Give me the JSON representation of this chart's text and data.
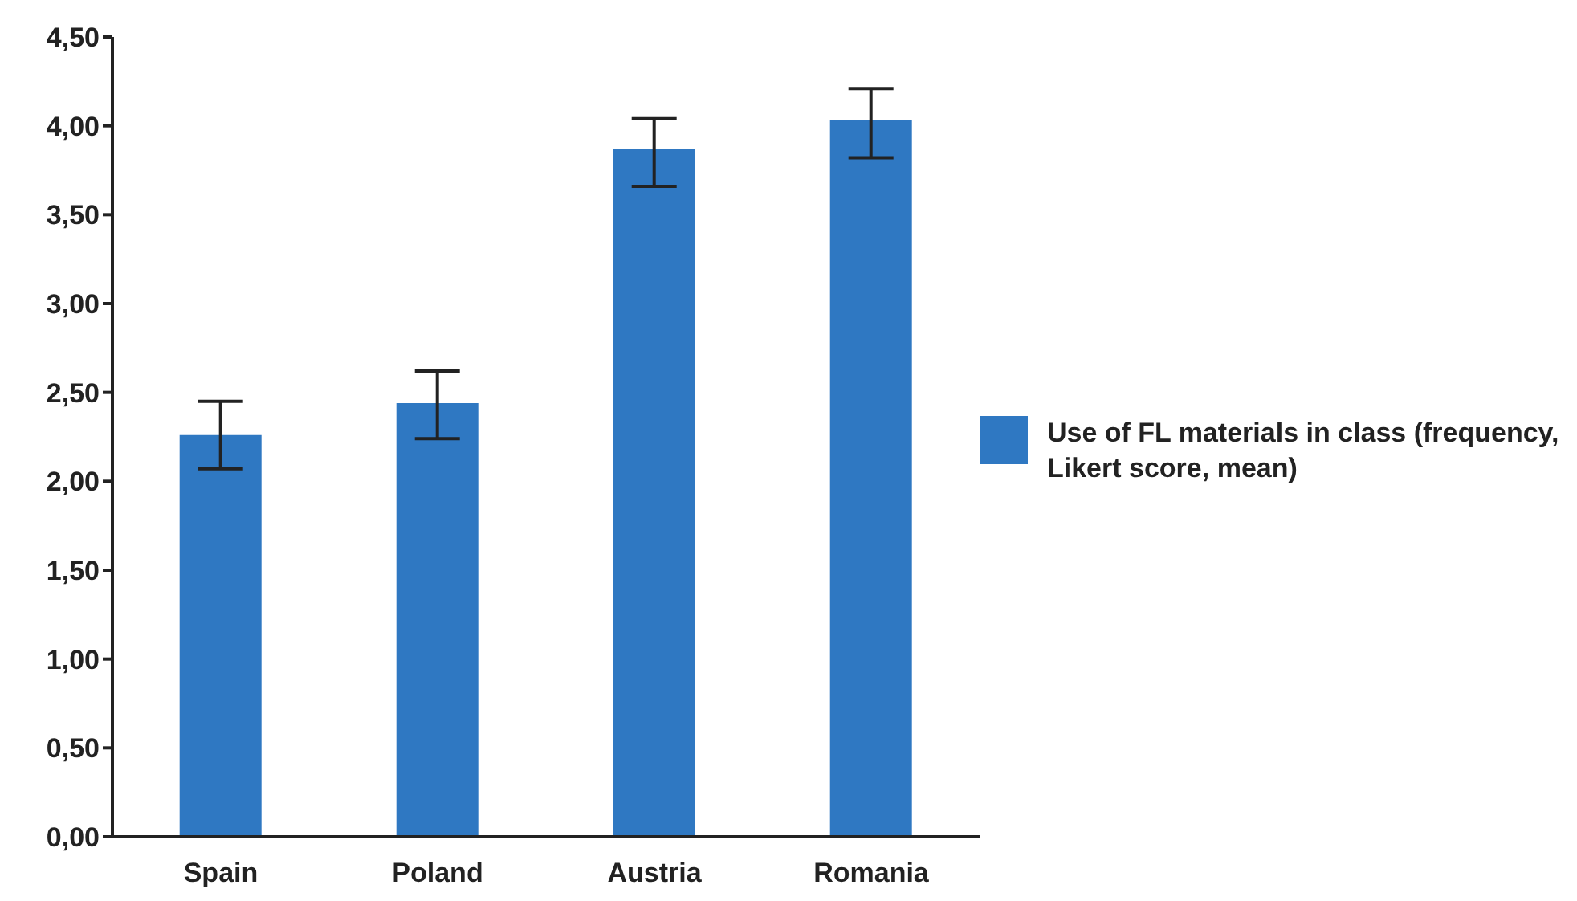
{
  "chart_data": {
    "type": "bar",
    "categories": [
      "Spain",
      "Poland",
      "Austria",
      "Romania"
    ],
    "series": [
      {
        "name": "Use of FL materials in class (frequency, Likert score, mean)",
        "color": "#2f78c2",
        "values": [
          2.26,
          2.44,
          3.87,
          4.03
        ],
        "errors": [
          [
            2.07,
            2.45
          ],
          [
            2.24,
            2.62
          ],
          [
            3.66,
            4.04
          ],
          [
            3.82,
            4.21
          ]
        ]
      }
    ],
    "ylim": [
      0,
      4.5
    ],
    "yticks": [
      {
        "value": 0,
        "label": "0,00"
      },
      {
        "value": 0.5,
        "label": "0,50"
      },
      {
        "value": 1,
        "label": "1,00"
      },
      {
        "value": 1.5,
        "label": "1,50"
      },
      {
        "value": 2,
        "label": "2,00"
      },
      {
        "value": 2.5,
        "label": "2,50"
      },
      {
        "value": 3,
        "label": "3,00"
      },
      {
        "value": 3.5,
        "label": "3,50"
      },
      {
        "value": 4,
        "label": "4,00"
      },
      {
        "value": 4.5,
        "label": "4,50"
      }
    ],
    "grid": false,
    "legend": "right"
  }
}
